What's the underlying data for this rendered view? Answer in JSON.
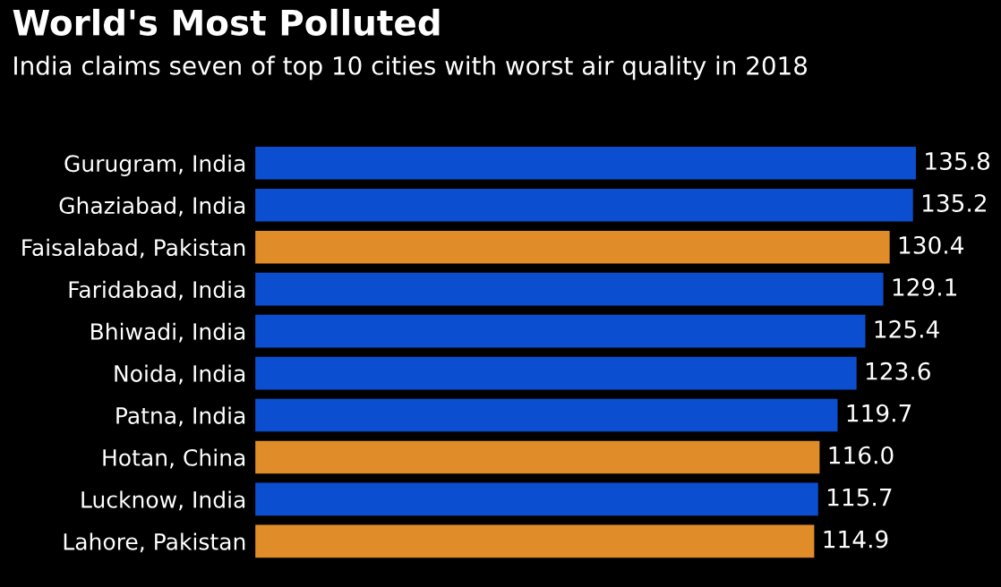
{
  "chart_data": {
    "type": "bar",
    "orientation": "horizontal",
    "title": "World's Most Polluted",
    "subtitle": "India claims seven of top 10 cities with worst air quality in 2018",
    "categories": [
      "Gurugram, India",
      "Ghaziabad, India",
      "Faisalabad, Pakistan",
      "Faridabad, India",
      "Bhiwadi, India",
      "Noida, India",
      "Patna, India",
      "Hotan, China",
      "Lucknow, India",
      "Lahore, Pakistan"
    ],
    "values": [
      135.8,
      135.2,
      130.4,
      129.1,
      125.4,
      123.6,
      119.7,
      116.0,
      115.7,
      114.9
    ],
    "colors": [
      "#0b4fd0",
      "#0b4fd0",
      "#e08c28",
      "#0b4fd0",
      "#0b4fd0",
      "#0b4fd0",
      "#0b4fd0",
      "#e08c28",
      "#0b4fd0",
      "#e08c28"
    ],
    "value_labels": [
      "135.8",
      "135.2",
      "130.4",
      "129.1",
      "125.4",
      "123.6",
      "119.7",
      "116.0",
      "115.7",
      "114.9"
    ],
    "grid": false,
    "legend": false
  }
}
